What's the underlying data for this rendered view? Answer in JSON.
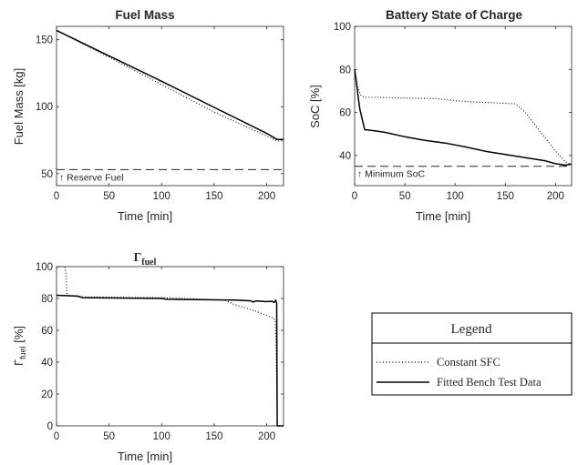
{
  "legend": {
    "title": "Legend",
    "entries": [
      {
        "label": "Constant SFC",
        "style": "dotted"
      },
      {
        "label": "Fitted Bench Test Data",
        "style": "solid"
      }
    ]
  },
  "chart_data": [
    {
      "id": "fuel",
      "type": "line",
      "title": "Fuel Mass",
      "xlabel": "Time [min]",
      "ylabel": "Fuel Mass [kg]",
      "xlim": [
        0,
        216
      ],
      "ylim": [
        41,
        160
      ],
      "xticks": [
        0,
        50,
        100,
        150,
        200
      ],
      "yticks": [
        50,
        100,
        150
      ],
      "grid": false,
      "series": [
        {
          "style": "dotted",
          "x": [
            0,
            50,
            100,
            150,
            200,
            210,
            216
          ],
          "y": [
            157,
            137,
            116.5,
            96,
            78,
            74.5,
            74.5
          ]
        },
        {
          "style": "solid",
          "x": [
            0,
            50,
            100,
            150,
            200,
            210,
            216
          ],
          "y": [
            157,
            138,
            119,
            99.5,
            80,
            75.5,
            75.5
          ]
        }
      ],
      "reference": {
        "y": 53,
        "style": "dashed",
        "label": "↑ Reserve Fuel"
      }
    },
    {
      "id": "soc",
      "type": "line",
      "title": "Battery State of Charge",
      "xlabel": "Time [min]",
      "ylabel": "SoC [%]",
      "xlim": [
        0,
        216
      ],
      "ylim": [
        26,
        100
      ],
      "xticks": [
        0,
        50,
        100,
        150,
        200
      ],
      "yticks": [
        40,
        60,
        80,
        100
      ],
      "grid": false,
      "series": [
        {
          "style": "dotted",
          "x": [
            0,
            3,
            6,
            10,
            20,
            40,
            60,
            80,
            100,
            120,
            140,
            160,
            170,
            180,
            190,
            200,
            210,
            216
          ],
          "y": [
            80,
            72,
            68,
            67,
            67,
            66.8,
            66.6,
            66.5,
            65.5,
            64.8,
            64.5,
            64,
            60,
            54,
            48,
            42,
            37,
            36
          ]
        },
        {
          "style": "solid",
          "x": [
            0,
            5,
            10,
            20,
            30,
            50,
            70,
            90,
            110,
            130,
            150,
            170,
            190,
            200,
            210,
            216
          ],
          "y": [
            80,
            62,
            52,
            51.5,
            50.8,
            48.7,
            47,
            45.8,
            44,
            42,
            40.5,
            39,
            37.5,
            36.2,
            35.5,
            36
          ]
        }
      ],
      "reference": {
        "y": 35,
        "style": "dashed",
        "label": "↑ Minimum SoC"
      }
    },
    {
      "id": "gamma",
      "type": "line",
      "title": "Γfuel",
      "xlabel": "Time [min]",
      "ylabel": "Γfuel [%]",
      "xlim": [
        0,
        216
      ],
      "ylim": [
        0,
        100
      ],
      "xticks": [
        0,
        50,
        100,
        150,
        200
      ],
      "yticks": [
        0,
        20,
        40,
        60,
        80,
        100
      ],
      "grid": false,
      "series": [
        {
          "style": "dotted",
          "x": [
            0,
            8,
            9,
            10,
            15,
            25,
            100,
            160,
            170,
            190,
            205,
            208,
            209,
            210,
            216
          ],
          "y": [
            100,
            100,
            95,
            82,
            81.5,
            81,
            80.5,
            79,
            76,
            72,
            68,
            66.5,
            50,
            0,
            0
          ]
        },
        {
          "style": "solid",
          "x": [
            0,
            20,
            25,
            100,
            105,
            170,
            185,
            187,
            190,
            200,
            205,
            207,
            208.5,
            209.5,
            210,
            216
          ],
          "y": [
            82,
            81.5,
            80.5,
            80,
            79.5,
            79,
            78.5,
            77.7,
            78.5,
            78,
            78.3,
            77.5,
            79,
            77,
            0,
            0
          ]
        }
      ]
    }
  ]
}
